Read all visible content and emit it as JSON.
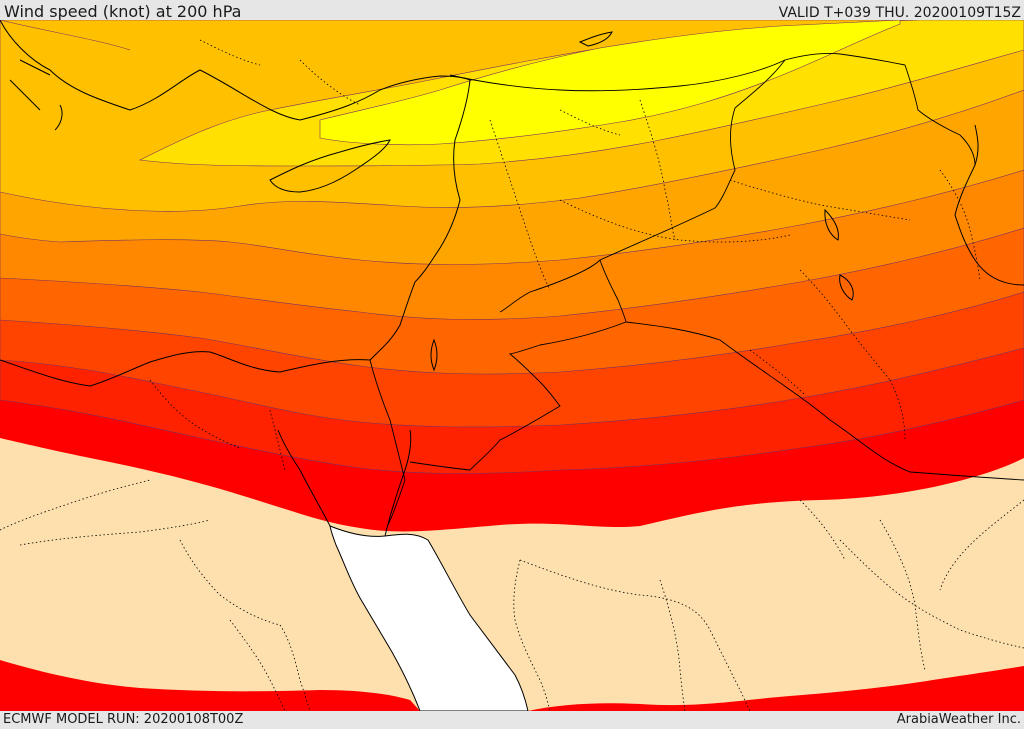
{
  "header": {
    "title": "Wind speed (knot) at 200 hPa",
    "valid": "VALID T+039 THU. 20200109T15Z"
  },
  "footer": {
    "model_run": "ECMWF MODEL RUN: 20200108T00Z",
    "credit": "ArabiaWeather Inc."
  },
  "colors": {
    "band_light": "#fde0ae",
    "band_1": "#ff0000",
    "band_2": "#ff2200",
    "band_3": "#ff4400",
    "band_4": "#ff6600",
    "band_5": "#ff8800",
    "band_6": "#ffa500",
    "band_7": "#ffc000",
    "band_8": "#ffe000",
    "band_9": "#ffff00",
    "sea": "#ffffff"
  }
}
